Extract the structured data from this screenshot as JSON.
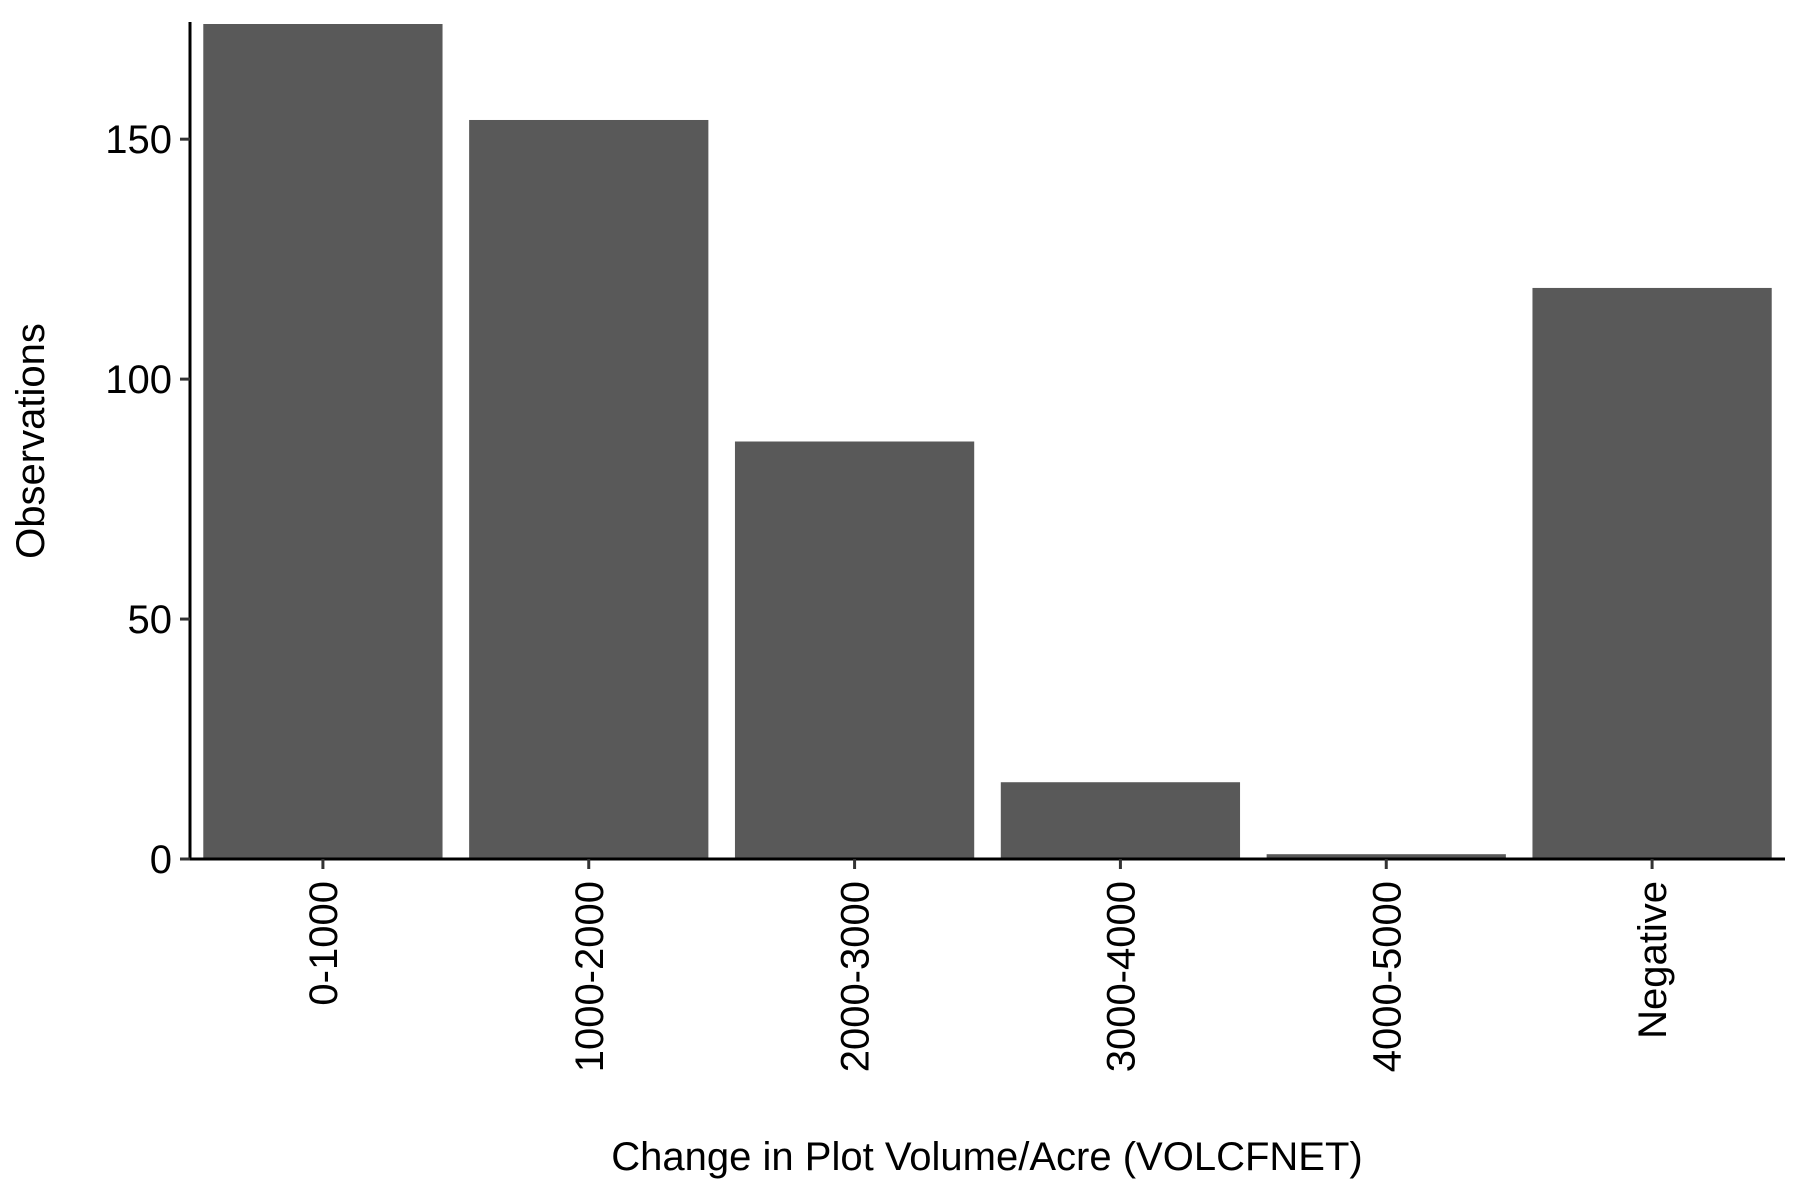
{
  "chart_data": {
    "type": "bar",
    "title": "",
    "xlabel": "Change in Plot Volume/Acre (VOLCFNET)",
    "ylabel": "Observations",
    "categories": [
      "0-1000",
      "1000-2000",
      "2000-3000",
      "3000-4000",
      "4000-5000",
      "Negative"
    ],
    "values": [
      174,
      154,
      87,
      16,
      1,
      119
    ],
    "ylim": [
      0,
      174
    ],
    "yticks": [
      0,
      50,
      100,
      150
    ],
    "ytick_labels": [
      "0",
      "50",
      "100",
      "150"
    ],
    "grid": false,
    "legend": "none",
    "bar_color": "#595959",
    "axis_color": "#000000",
    "tick_color": "#333333"
  }
}
